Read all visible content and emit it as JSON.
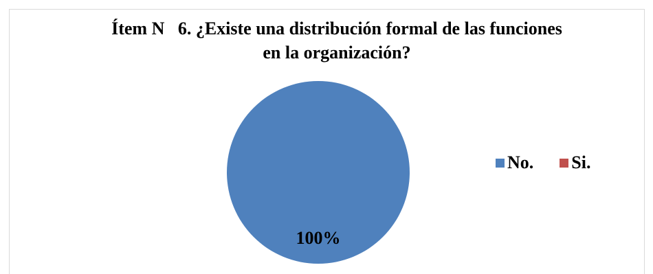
{
  "chart_data": {
    "type": "pie",
    "title_line1": "Ítem N   6. ¿Existe una distribución formal de las funciones",
    "title_line2": "en la organización?",
    "categories": [
      "No.",
      "Si."
    ],
    "values": [
      100,
      0
    ],
    "colors": [
      "#4F81BD",
      "#C0504D"
    ],
    "data_labels": [
      "100%"
    ],
    "legend_position": "right"
  }
}
